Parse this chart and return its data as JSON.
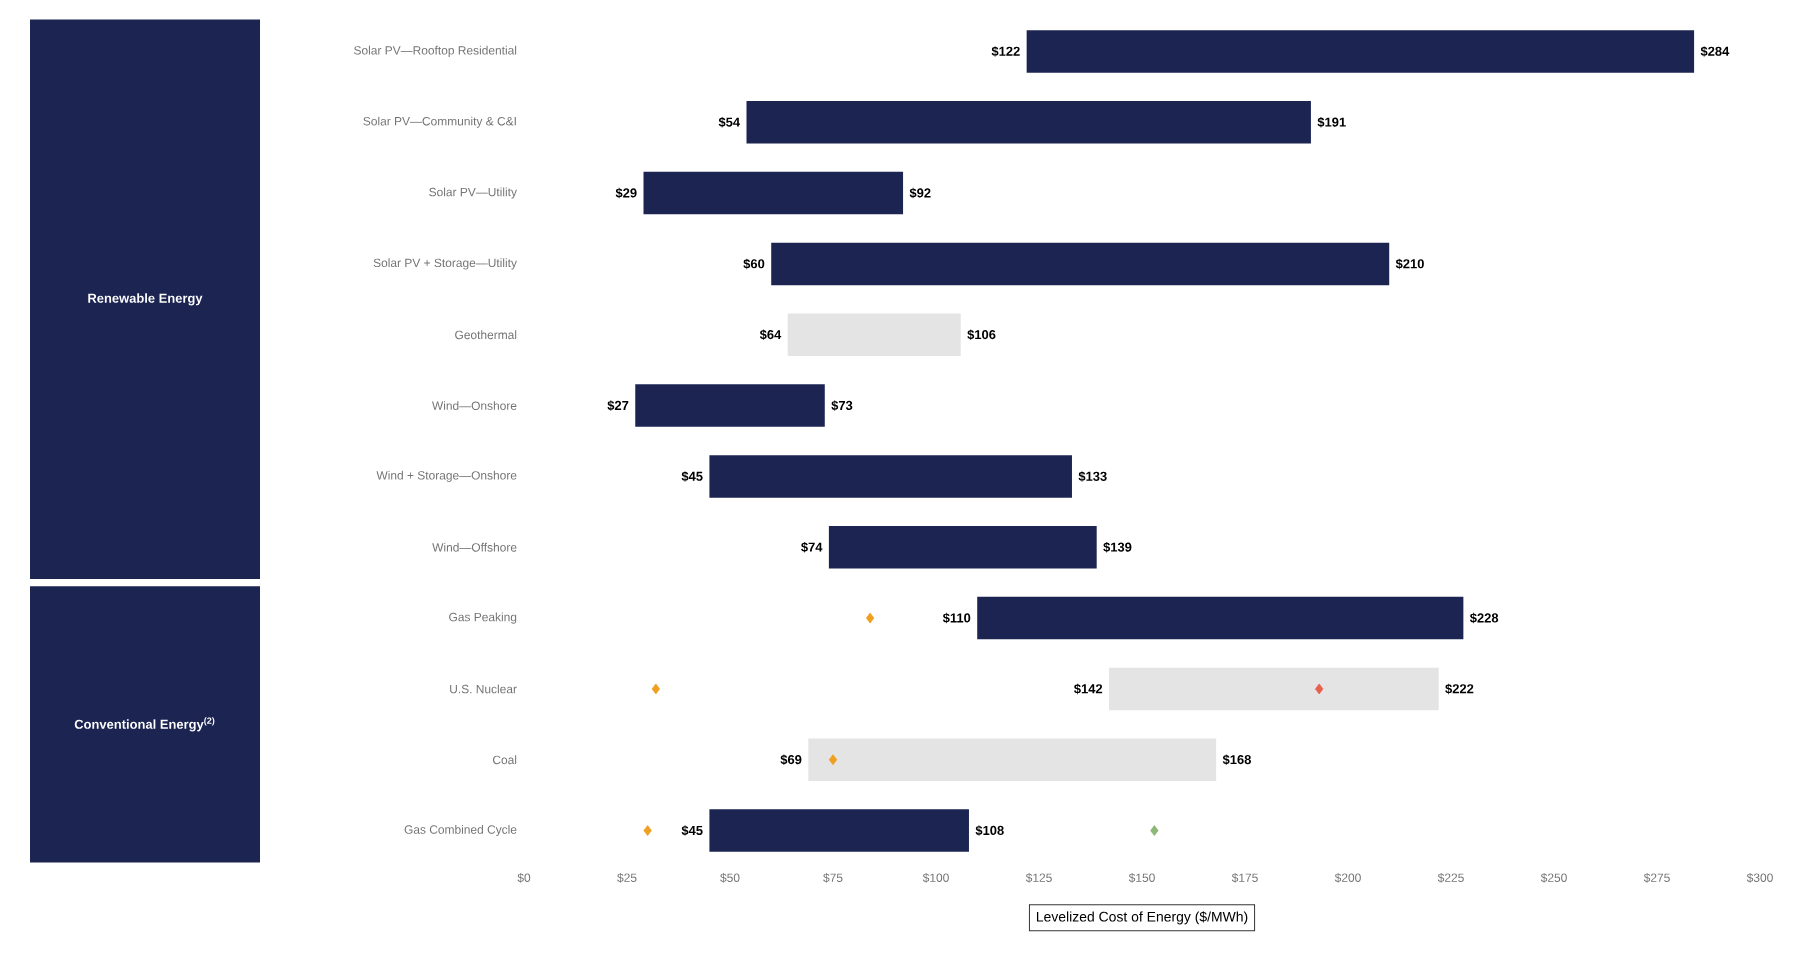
{
  "chart_data": {
    "type": "bar",
    "orientation": "horizontal",
    "xlabel": "Levelized Cost of Energy ($/MWh)",
    "categories": [
      "Solar PV—Rooftop Residential",
      "Solar PV—Community & C&I",
      "Solar PV—Utility",
      "Solar PV + Storage—Utility",
      "Geothermal",
      "Wind—Onshore",
      "Wind + Storage—Onshore",
      "Wind—Offshore",
      "Gas Peaking",
      "U.S. Nuclear",
      "Coal",
      "Gas Combined Cycle"
    ],
    "series": [
      {
        "base": [
          122,
          54,
          29,
          60,
          64,
          27,
          45,
          74,
          110,
          142,
          69,
          45
        ],
        "values": [
          162,
          137,
          63,
          150,
          42,
          46,
          88,
          65,
          118,
          80,
          99,
          63
        ],
        "colors": [
          "#1c2452",
          "#1c2452",
          "#1c2452",
          "#1c2452",
          "#e4e4e4",
          "#1c2452",
          "#1c2452",
          "#1c2452",
          "#1c2452",
          "#e4e4e4",
          "#e4e4e4",
          "#1c2452"
        ]
      },
      {
        "type": "scatter",
        "marker": "diamond",
        "color": "#f0a020",
        "x": [
          "Gas Peaking",
          "U.S. Nuclear",
          "Coal",
          "Gas Combined Cycle"
        ],
        "values": [
          84,
          32,
          75,
          30
        ]
      },
      {
        "type": "scatter",
        "marker": "diamond",
        "color": "#e8604c",
        "x": [
          "U.S. Nuclear"
        ],
        "values": [
          193
        ]
      },
      {
        "type": "scatter",
        "marker": "diamond",
        "color": "#8cb878",
        "x": [
          "Gas Combined Cycle"
        ],
        "values": [
          153
        ]
      }
    ],
    "xlim": [
      0,
      300
    ],
    "xticks": [
      {
        "value": 0,
        "label": "$0"
      },
      {
        "value": 25,
        "label": "$25"
      },
      {
        "value": 50,
        "label": "$50"
      },
      {
        "value": 75,
        "label": "$75"
      },
      {
        "value": 100,
        "label": "$100"
      },
      {
        "value": 125,
        "label": "$125"
      },
      {
        "value": 150,
        "label": "$150"
      },
      {
        "value": 175,
        "label": "$175"
      },
      {
        "value": 200,
        "label": "$200"
      },
      {
        "value": 225,
        "label": "$225"
      },
      {
        "value": 250,
        "label": "$250"
      },
      {
        "value": 275,
        "label": "$275"
      },
      {
        "value": 300,
        "label": "$300"
      }
    ],
    "annotations": [
      {
        "text": "$122",
        "x": 122,
        "y": "Solar PV—Rooftop Residential"
      },
      {
        "text": "$284",
        "x": 284,
        "y": "Solar PV—Rooftop Residential"
      },
      {
        "text": "$54",
        "x": 54,
        "y": "Solar PV—Community & C&I"
      },
      {
        "text": "$191",
        "x": 191,
        "y": "Solar PV—Community & C&I"
      },
      {
        "text": "$29",
        "x": 29,
        "y": "Solar PV—Utility"
      },
      {
        "text": "$92",
        "x": 92,
        "y": "Solar PV—Utility"
      },
      {
        "text": "$60",
        "x": 60,
        "y": "Solar PV + Storage—Utility"
      },
      {
        "text": "$210",
        "x": 210,
        "y": "Solar PV + Storage—Utility"
      },
      {
        "text": "$64",
        "x": 64,
        "y": "Geothermal"
      },
      {
        "text": "$106",
        "x": 106,
        "y": "Geothermal"
      },
      {
        "text": "$27",
        "x": 27,
        "y": "Wind—Onshore"
      },
      {
        "text": "$73",
        "x": 73,
        "y": "Wind—Onshore"
      },
      {
        "text": "$45",
        "x": 45,
        "y": "Wind + Storage—Onshore"
      },
      {
        "text": "$133",
        "x": 133,
        "y": "Wind + Storage—Onshore"
      },
      {
        "text": "$74",
        "x": 74,
        "y": "Wind—Offshore"
      },
      {
        "text": "$139",
        "x": 139,
        "y": "Wind—Offshore"
      },
      {
        "text": "$110",
        "x": 110,
        "y": "Gas Peaking"
      },
      {
        "text": "$228",
        "x": 228,
        "y": "Gas Peaking"
      },
      {
        "text": "$142",
        "x": 142,
        "y": "U.S. Nuclear"
      },
      {
        "text": "$222",
        "x": 222,
        "y": "U.S. Nuclear"
      },
      {
        "text": "$69",
        "x": 69,
        "y": "Coal"
      },
      {
        "text": "$168",
        "x": 168,
        "y": "Coal"
      },
      {
        "text": "$45",
        "x": 45,
        "y": "Gas Combined Cycle"
      },
      {
        "text": "$108",
        "x": 108,
        "y": "Gas Combined Cycle"
      },
      "Renewable Energy",
      "Conventional Energy$^{(2)}$"
    ]
  }
}
